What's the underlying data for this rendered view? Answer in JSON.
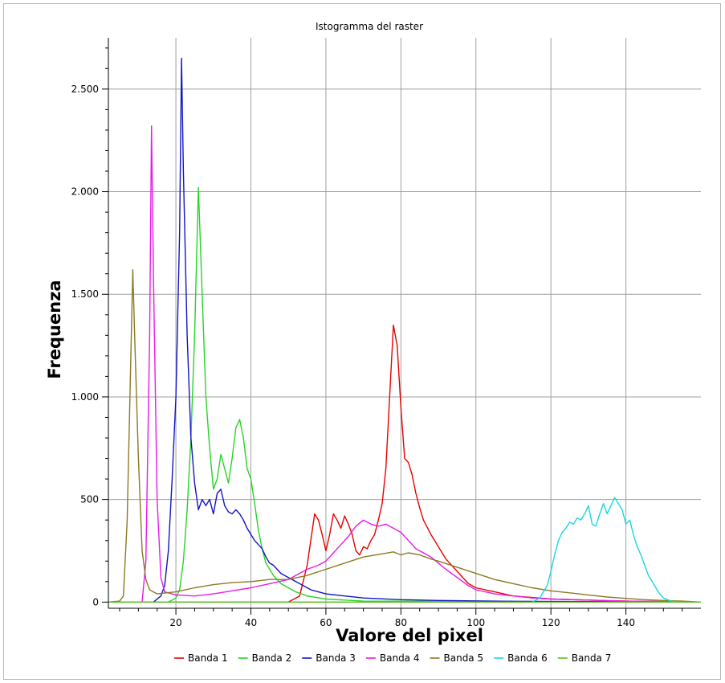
{
  "window": {
    "title": "Istogramma del raster"
  },
  "chart_data": {
    "type": "line",
    "title": "Istogramma del raster",
    "xlabel": "Valore del pixel",
    "ylabel": "Frequenza",
    "xlim": [
      2,
      160
    ],
    "ylim": [
      -30,
      2750
    ],
    "x_ticks": [
      20,
      40,
      60,
      80,
      100,
      120,
      140
    ],
    "x_tick_labels": [
      "20",
      "40",
      "60",
      "80",
      "100",
      "120",
      "140"
    ],
    "y_ticks": [
      0,
      500,
      1000,
      1500,
      2000,
      2500
    ],
    "y_tick_labels": [
      "0",
      "500",
      "1.000",
      "1.500",
      "2.000",
      "2.500"
    ],
    "grid": true,
    "legend_position": "bottom",
    "series": [
      {
        "name": "Banda 1",
        "color": "#e80000",
        "points": [
          [
            2,
            0
          ],
          [
            50,
            0
          ],
          [
            53,
            30
          ],
          [
            55,
            180
          ],
          [
            57,
            430
          ],
          [
            58,
            400
          ],
          [
            59,
            330
          ],
          [
            60,
            250
          ],
          [
            61,
            330
          ],
          [
            62,
            430
          ],
          [
            63,
            400
          ],
          [
            64,
            360
          ],
          [
            65,
            420
          ],
          [
            66,
            380
          ],
          [
            67,
            330
          ],
          [
            68,
            250
          ],
          [
            69,
            230
          ],
          [
            70,
            270
          ],
          [
            71,
            260
          ],
          [
            72,
            300
          ],
          [
            73,
            330
          ],
          [
            74,
            400
          ],
          [
            75,
            480
          ],
          [
            76,
            650
          ],
          [
            77,
            1000
          ],
          [
            78,
            1350
          ],
          [
            79,
            1250
          ],
          [
            80,
            950
          ],
          [
            81,
            700
          ],
          [
            82,
            680
          ],
          [
            83,
            620
          ],
          [
            84,
            530
          ],
          [
            85,
            460
          ],
          [
            86,
            400
          ],
          [
            88,
            330
          ],
          [
            90,
            270
          ],
          [
            92,
            210
          ],
          [
            95,
            150
          ],
          [
            98,
            90
          ],
          [
            100,
            70
          ],
          [
            105,
            50
          ],
          [
            110,
            30
          ],
          [
            120,
            15
          ],
          [
            140,
            5
          ],
          [
            160,
            0
          ]
        ]
      },
      {
        "name": "Banda 2",
        "color": "#27d427",
        "points": [
          [
            2,
            0
          ],
          [
            18,
            0
          ],
          [
            20,
            20
          ],
          [
            21,
            60
          ],
          [
            22,
            200
          ],
          [
            23,
            450
          ],
          [
            24,
            800
          ],
          [
            25,
            1300
          ],
          [
            26,
            2020
          ],
          [
            27,
            1500
          ],
          [
            28,
            1000
          ],
          [
            29,
            750
          ],
          [
            30,
            550
          ],
          [
            31,
            600
          ],
          [
            32,
            720
          ],
          [
            33,
            650
          ],
          [
            34,
            580
          ],
          [
            35,
            700
          ],
          [
            36,
            850
          ],
          [
            37,
            890
          ],
          [
            38,
            800
          ],
          [
            39,
            650
          ],
          [
            40,
            600
          ],
          [
            41,
            480
          ],
          [
            42,
            350
          ],
          [
            43,
            260
          ],
          [
            44,
            190
          ],
          [
            46,
            130
          ],
          [
            48,
            90
          ],
          [
            50,
            70
          ],
          [
            52,
            50
          ],
          [
            55,
            30
          ],
          [
            60,
            15
          ],
          [
            70,
            5
          ],
          [
            160,
            0
          ]
        ]
      },
      {
        "name": "Banda 3",
        "color": "#1414c8",
        "points": [
          [
            2,
            0
          ],
          [
            14,
            0
          ],
          [
            16,
            30
          ],
          [
            17,
            80
          ],
          [
            18,
            250
          ],
          [
            19,
            600
          ],
          [
            20,
            1000
          ],
          [
            21,
            1800
          ],
          [
            21.5,
            2650
          ],
          [
            22,
            2100
          ],
          [
            23,
            1300
          ],
          [
            24,
            800
          ],
          [
            25,
            580
          ],
          [
            26,
            450
          ],
          [
            27,
            500
          ],
          [
            28,
            470
          ],
          [
            29,
            500
          ],
          [
            30,
            430
          ],
          [
            31,
            530
          ],
          [
            32,
            550
          ],
          [
            33,
            470
          ],
          [
            34,
            440
          ],
          [
            35,
            430
          ],
          [
            36,
            450
          ],
          [
            37,
            430
          ],
          [
            38,
            400
          ],
          [
            39,
            360
          ],
          [
            40,
            330
          ],
          [
            41,
            300
          ],
          [
            42,
            280
          ],
          [
            43,
            260
          ],
          [
            44,
            220
          ],
          [
            45,
            190
          ],
          [
            46,
            180
          ],
          [
            47,
            160
          ],
          [
            48,
            140
          ],
          [
            50,
            120
          ],
          [
            52,
            100
          ],
          [
            54,
            80
          ],
          [
            56,
            60
          ],
          [
            58,
            50
          ],
          [
            60,
            40
          ],
          [
            65,
            30
          ],
          [
            70,
            20
          ],
          [
            80,
            12
          ],
          [
            90,
            8
          ],
          [
            110,
            4
          ],
          [
            160,
            0
          ]
        ]
      },
      {
        "name": "Banda 4",
        "color": "#e81be8",
        "points": [
          [
            2,
            0
          ],
          [
            11,
            0
          ],
          [
            12,
            200
          ],
          [
            13,
            1300
          ],
          [
            13.5,
            2320
          ],
          [
            14,
            1600
          ],
          [
            15,
            500
          ],
          [
            16,
            120
          ],
          [
            17,
            50
          ],
          [
            20,
            35
          ],
          [
            25,
            30
          ],
          [
            30,
            40
          ],
          [
            35,
            55
          ],
          [
            40,
            70
          ],
          [
            45,
            90
          ],
          [
            50,
            110
          ],
          [
            52,
            130
          ],
          [
            55,
            160
          ],
          [
            58,
            180
          ],
          [
            60,
            200
          ],
          [
            62,
            240
          ],
          [
            64,
            280
          ],
          [
            66,
            320
          ],
          [
            68,
            370
          ],
          [
            70,
            400
          ],
          [
            72,
            380
          ],
          [
            74,
            370
          ],
          [
            76,
            380
          ],
          [
            78,
            360
          ],
          [
            80,
            340
          ],
          [
            82,
            300
          ],
          [
            84,
            260
          ],
          [
            86,
            240
          ],
          [
            88,
            220
          ],
          [
            90,
            190
          ],
          [
            92,
            160
          ],
          [
            95,
            120
          ],
          [
            98,
            80
          ],
          [
            100,
            60
          ],
          [
            105,
            40
          ],
          [
            110,
            30
          ],
          [
            115,
            20
          ],
          [
            120,
            15
          ],
          [
            130,
            10
          ],
          [
            140,
            5
          ],
          [
            150,
            3
          ],
          [
            160,
            0
          ]
        ]
      },
      {
        "name": "Banda 5",
        "color": "#8b7a22",
        "points": [
          [
            2,
            0
          ],
          [
            5,
            5
          ],
          [
            6,
            30
          ],
          [
            7,
            400
          ],
          [
            8,
            1200
          ],
          [
            8.5,
            1620
          ],
          [
            9,
            1300
          ],
          [
            10,
            700
          ],
          [
            11,
            250
          ],
          [
            12,
            110
          ],
          [
            13,
            60
          ],
          [
            15,
            40
          ],
          [
            20,
            50
          ],
          [
            25,
            70
          ],
          [
            30,
            85
          ],
          [
            35,
            95
          ],
          [
            40,
            100
          ],
          [
            45,
            110
          ],
          [
            50,
            110
          ],
          [
            55,
            130
          ],
          [
            60,
            160
          ],
          [
            65,
            190
          ],
          [
            70,
            220
          ],
          [
            75,
            235
          ],
          [
            78,
            245
          ],
          [
            80,
            230
          ],
          [
            82,
            240
          ],
          [
            85,
            230
          ],
          [
            88,
            210
          ],
          [
            90,
            200
          ],
          [
            95,
            170
          ],
          [
            100,
            140
          ],
          [
            105,
            110
          ],
          [
            110,
            90
          ],
          [
            115,
            70
          ],
          [
            120,
            55
          ],
          [
            125,
            45
          ],
          [
            130,
            35
          ],
          [
            135,
            25
          ],
          [
            140,
            18
          ],
          [
            145,
            12
          ],
          [
            150,
            8
          ],
          [
            155,
            5
          ],
          [
            160,
            0
          ]
        ]
      },
      {
        "name": "Banda 6",
        "color": "#1bd6e0",
        "points": [
          [
            2,
            0
          ],
          [
            115,
            0
          ],
          [
            117,
            20
          ],
          [
            119,
            80
          ],
          [
            120,
            150
          ],
          [
            121,
            230
          ],
          [
            122,
            300
          ],
          [
            123,
            340
          ],
          [
            124,
            360
          ],
          [
            125,
            390
          ],
          [
            126,
            380
          ],
          [
            127,
            410
          ],
          [
            128,
            400
          ],
          [
            129,
            430
          ],
          [
            130,
            470
          ],
          [
            131,
            380
          ],
          [
            132,
            370
          ],
          [
            133,
            430
          ],
          [
            134,
            480
          ],
          [
            135,
            430
          ],
          [
            136,
            470
          ],
          [
            137,
            510
          ],
          [
            138,
            480
          ],
          [
            139,
            450
          ],
          [
            140,
            380
          ],
          [
            141,
            400
          ],
          [
            142,
            330
          ],
          [
            143,
            270
          ],
          [
            144,
            230
          ],
          [
            145,
            180
          ],
          [
            146,
            130
          ],
          [
            147,
            100
          ],
          [
            148,
            70
          ],
          [
            149,
            40
          ],
          [
            150,
            20
          ],
          [
            152,
            5
          ],
          [
            155,
            0
          ],
          [
            160,
            0
          ]
        ]
      },
      {
        "name": "Banda 7",
        "color": "#5fbe23",
        "points": [
          [
            2,
            0
          ],
          [
            160,
            0
          ]
        ]
      }
    ]
  }
}
